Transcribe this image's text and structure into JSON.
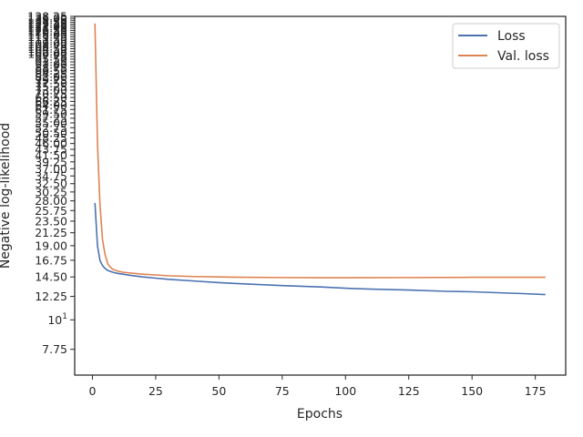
{
  "chart_data": {
    "type": "line",
    "xlabel": "Epochs",
    "ylabel": "Negative log-likelihood",
    "yscale": "log",
    "xlim": [
      -7,
      187
    ],
    "ylim": [
      6.2,
      138.25
    ],
    "xticks": [
      0,
      25,
      50,
      75,
      100,
      125,
      150,
      175
    ],
    "yticks": [
      {
        "value": 7.75,
        "label": "7.75"
      },
      {
        "value": 10,
        "label": "10",
        "sup": "1"
      },
      {
        "value": 12.25,
        "label": "12.25"
      },
      {
        "value": 14.5,
        "label": "14.50"
      },
      {
        "value": 16.75,
        "label": "16.75"
      },
      {
        "value": 19.0,
        "label": "19.00"
      },
      {
        "value": 21.25,
        "label": "21.25"
      },
      {
        "value": 23.5,
        "label": "23.50"
      },
      {
        "value": 25.75,
        "label": "25.75"
      },
      {
        "value": 28.0,
        "label": "28.00"
      },
      {
        "value": 30.25,
        "label": "30.25"
      },
      {
        "value": 32.5,
        "label": "32.50"
      },
      {
        "value": 34.75,
        "label": "34.75"
      },
      {
        "value": 37.0,
        "label": "37.00"
      },
      {
        "value": 39.25,
        "label": "39.25"
      },
      {
        "value": 41.5,
        "label": "41.50"
      },
      {
        "value": 43.75,
        "label": "43.75"
      },
      {
        "value": 46.0,
        "label": "46.00"
      },
      {
        "value": 48.25,
        "label": "48.25"
      },
      {
        "value": 50.5,
        "label": "50.50"
      },
      {
        "value": 52.75,
        "label": "52.75"
      },
      {
        "value": 55.0,
        "label": "55.00"
      },
      {
        "value": 57.25,
        "label": "57.25"
      },
      {
        "value": 59.5,
        "label": "59.50"
      },
      {
        "value": 61.75,
        "label": "61.75"
      },
      {
        "value": 64.0,
        "label": "64.00"
      },
      {
        "value": 66.25,
        "label": "66.25"
      },
      {
        "value": 68.5,
        "label": "68.50"
      },
      {
        "value": 70.75,
        "label": "70.75"
      },
      {
        "value": 73.0,
        "label": "73.00"
      },
      {
        "value": 75.25,
        "label": "75.25"
      },
      {
        "value": 77.5,
        "label": "77.50"
      },
      {
        "value": 79.75,
        "label": "79.75"
      },
      {
        "value": 82.0,
        "label": "82.00"
      },
      {
        "value": 84.25,
        "label": "84.25"
      },
      {
        "value": 86.5,
        "label": "86.50"
      },
      {
        "value": 88.75,
        "label": "88.75"
      },
      {
        "value": 91.0,
        "label": "91.00"
      },
      {
        "value": 93.25,
        "label": "93.25"
      },
      {
        "value": 95.5,
        "label": "95.50"
      },
      {
        "value": 97.75,
        "label": "97.75"
      },
      {
        "value": 100.0,
        "label": "100.00"
      },
      {
        "value": 102.25,
        "label": "102.25"
      },
      {
        "value": 104.5,
        "label": "104.50"
      },
      {
        "value": 106.75,
        "label": "106.75"
      },
      {
        "value": 109.0,
        "label": "109.00"
      },
      {
        "value": 111.25,
        "label": "111.25"
      },
      {
        "value": 113.5,
        "label": "113.50"
      },
      {
        "value": 115.75,
        "label": "115.75"
      },
      {
        "value": 118.0,
        "label": "118.00"
      },
      {
        "value": 120.25,
        "label": "120.25"
      },
      {
        "value": 122.5,
        "label": "122.50"
      },
      {
        "value": 124.75,
        "label": "124.75"
      },
      {
        "value": 127.0,
        "label": "127.00"
      },
      {
        "value": 129.25,
        "label": "129.25"
      },
      {
        "value": 131.5,
        "label": "131.50"
      },
      {
        "value": 133.75,
        "label": "133.75"
      },
      {
        "value": 136.0,
        "label": "136.00"
      },
      {
        "value": 138.25,
        "label": "138.25"
      }
    ],
    "legend": "top-right",
    "grid": false,
    "series": [
      {
        "name": "Loss",
        "color": "#4c72b0",
        "points": [
          [
            1,
            27.5
          ],
          [
            2,
            19.0
          ],
          [
            3,
            16.7
          ],
          [
            4,
            16.0
          ],
          [
            5,
            15.6
          ],
          [
            6,
            15.35
          ],
          [
            8,
            15.1
          ],
          [
            10,
            14.95
          ],
          [
            15,
            14.7
          ],
          [
            20,
            14.5
          ],
          [
            25,
            14.35
          ],
          [
            30,
            14.2
          ],
          [
            40,
            14.0
          ],
          [
            50,
            13.8
          ],
          [
            60,
            13.65
          ],
          [
            75,
            13.45
          ],
          [
            90,
            13.3
          ],
          [
            100,
            13.15
          ],
          [
            110,
            13.05
          ],
          [
            125,
            12.95
          ],
          [
            140,
            12.8
          ],
          [
            150,
            12.75
          ],
          [
            160,
            12.65
          ],
          [
            170,
            12.55
          ],
          [
            179,
            12.45
          ]
        ]
      },
      {
        "name": "Val. loss",
        "color": "#dd8452",
        "points": [
          [
            1,
            130.0
          ],
          [
            2,
            46.0
          ],
          [
            3,
            27.0
          ],
          [
            4,
            20.0
          ],
          [
            5,
            17.6
          ],
          [
            6,
            16.3
          ],
          [
            7,
            15.8
          ],
          [
            8,
            15.5
          ],
          [
            10,
            15.25
          ],
          [
            12,
            15.1
          ],
          [
            15,
            15.0
          ],
          [
            20,
            14.85
          ],
          [
            25,
            14.75
          ],
          [
            30,
            14.65
          ],
          [
            40,
            14.55
          ],
          [
            50,
            14.5
          ],
          [
            60,
            14.45
          ],
          [
            75,
            14.42
          ],
          [
            90,
            14.4
          ],
          [
            100,
            14.4
          ],
          [
            125,
            14.42
          ],
          [
            150,
            14.45
          ],
          [
            165,
            14.45
          ],
          [
            179,
            14.45
          ]
        ]
      }
    ]
  }
}
